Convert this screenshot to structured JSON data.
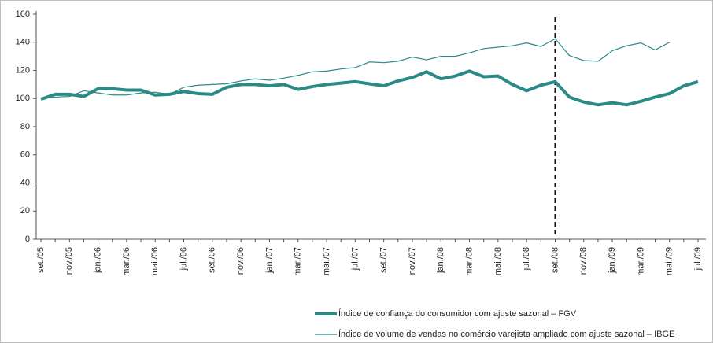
{
  "chart_data": {
    "type": "line",
    "categories": [
      "set./05",
      null,
      "nov./05",
      null,
      "jan./06",
      null,
      "mar./06",
      null,
      "mai./06",
      null,
      "jul./06",
      null,
      "set./06",
      null,
      "nov./06",
      null,
      "jan./07",
      null,
      "mar./07",
      null,
      "mai./07",
      null,
      "jul./07",
      null,
      "set./07",
      null,
      "nov./07",
      null,
      "jan./08",
      null,
      "mar./08",
      null,
      "mai./08",
      null,
      "jul./08",
      null,
      "set./08",
      null,
      "nov./08",
      null,
      "jan./09",
      null,
      "mar./09",
      null,
      "mai./09",
      null,
      "jul./09"
    ],
    "series": [
      {
        "name": "Índice de confiança do consumidor com ajuste sazonal – FGV",
        "color": "#2b8a86",
        "line_width": 4,
        "values": [
          99.5,
          103,
          103,
          101.5,
          107,
          107,
          106,
          106,
          102.5,
          103,
          105,
          103.5,
          103,
          108,
          110,
          110,
          109,
          110,
          106.5,
          108.5,
          110,
          111,
          112,
          110.5,
          109,
          112.5,
          115,
          119,
          114,
          116,
          119.5,
          115.5,
          116,
          110,
          105.5,
          109.5,
          112,
          101,
          97.5,
          95.5,
          97,
          95.5,
          98,
          101,
          103.5,
          109,
          112
        ]
      },
      {
        "name": "Índice de volume de vendas no comércio varejista ampliado com ajuste sazonal – IBGE",
        "color": "#2b8a86",
        "line_width": 1.2,
        "values": [
          100,
          101,
          101.5,
          105.5,
          104,
          102.5,
          102.5,
          104,
          104.5,
          103,
          108,
          109.5,
          110,
          110.5,
          112.5,
          114,
          113,
          114.5,
          116.5,
          119,
          119.5,
          121,
          122,
          126,
          125.5,
          126.5,
          129.5,
          127.5,
          130,
          130,
          132.5,
          135.5,
          136.5,
          137.5,
          139.5,
          137,
          142.5,
          130.5,
          127,
          126.5,
          134,
          137.5,
          139.5,
          134.5,
          140,
          null,
          null
        ]
      }
    ],
    "reference_line": {
      "x": "set./08",
      "style": "dashed",
      "color": "#111111"
    },
    "ylim": [
      0,
      160
    ],
    "yticks": [
      0,
      20,
      40,
      60,
      80,
      100,
      120,
      140,
      160
    ],
    "grid": false
  }
}
